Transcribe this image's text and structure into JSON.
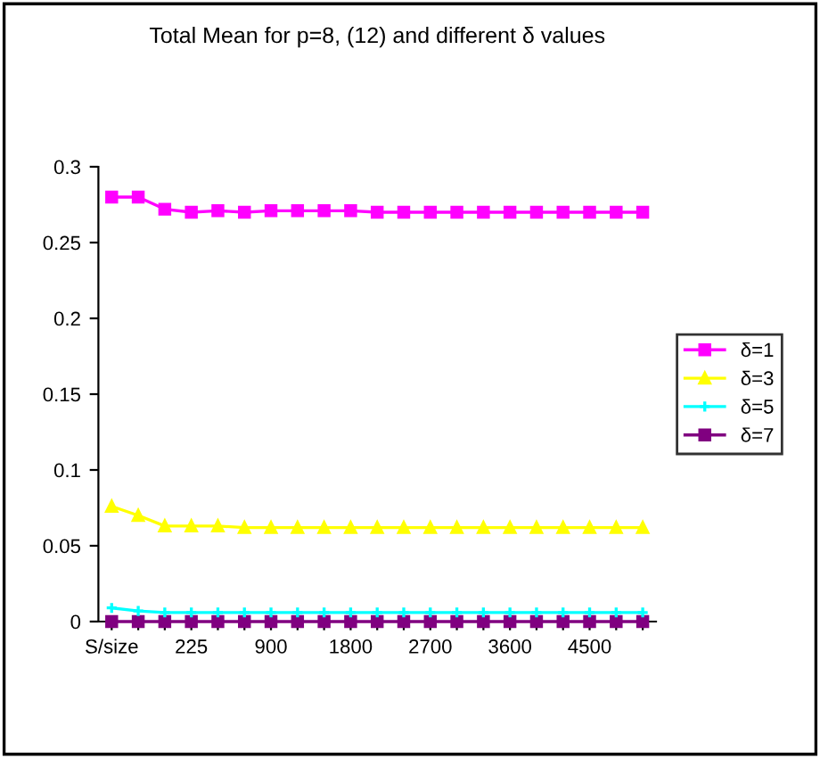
{
  "chart_data": {
    "type": "line",
    "title": "Total Mean for p=8, (12) and different δ values",
    "categories": [
      "S/size",
      null,
      null,
      "225",
      null,
      null,
      "900",
      null,
      null,
      "1800",
      null,
      null,
      "2700",
      null,
      null,
      "3600",
      null,
      null,
      "4500",
      null,
      null
    ],
    "series": [
      {
        "name": "δ=1",
        "color": "#ff00ff",
        "marker": "square",
        "values": [
          0.28,
          0.28,
          0.272,
          0.27,
          0.271,
          0.27,
          0.271,
          0.271,
          0.271,
          0.271,
          0.27,
          0.27,
          0.27,
          0.27,
          0.27,
          0.27,
          0.27,
          0.27,
          0.27,
          0.27,
          0.27
        ]
      },
      {
        "name": "δ=3",
        "color": "#ffff00",
        "marker": "triangle",
        "values": [
          0.076,
          0.07,
          0.063,
          0.063,
          0.063,
          0.062,
          0.062,
          0.062,
          0.062,
          0.062,
          0.062,
          0.062,
          0.062,
          0.062,
          0.062,
          0.062,
          0.062,
          0.062,
          0.062,
          0.062,
          0.062
        ]
      },
      {
        "name": "δ=5",
        "color": "#00ffff",
        "marker": "cross",
        "values": [
          0.009,
          0.007,
          0.006,
          0.006,
          0.006,
          0.006,
          0.006,
          0.006,
          0.006,
          0.006,
          0.006,
          0.006,
          0.006,
          0.006,
          0.006,
          0.006,
          0.006,
          0.006,
          0.006,
          0.006,
          0.006
        ]
      },
      {
        "name": "δ=7",
        "color": "#800080",
        "marker": "square",
        "values": [
          0,
          0,
          0,
          0,
          0,
          0,
          0,
          0,
          0,
          0,
          0,
          0,
          0,
          0,
          0,
          0,
          0,
          0,
          0,
          0,
          0
        ]
      }
    ],
    "ylim": [
      0,
      0.3
    ],
    "yticks": [
      0,
      0.05,
      0.1,
      0.15,
      0.2,
      0.25,
      0.3
    ],
    "grid": false,
    "legend": "right"
  }
}
